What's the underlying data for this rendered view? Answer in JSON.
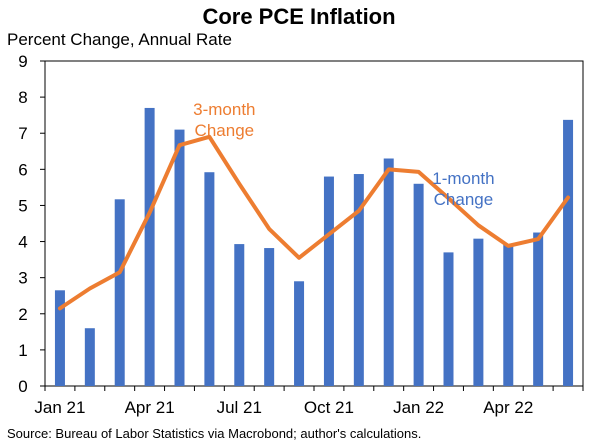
{
  "chart_data": {
    "type": "bar",
    "title": "Core PCE Inflation",
    "ylabel": "Percent Change, Annual Rate",
    "source": "Source: Bureau of Labor Statistics via Macrobond; author's calculations.",
    "ylim": [
      0,
      9
    ],
    "yticks": [
      "0",
      "1",
      "2",
      "3",
      "4",
      "5",
      "6",
      "7",
      "8",
      "9"
    ],
    "x": [
      "Jan 21",
      "Feb 21",
      "Mar 21",
      "Apr 21",
      "May 21",
      "Jun 21",
      "Jul 21",
      "Aug 21",
      "Sep 21",
      "Oct 21",
      "Nov 21",
      "Dec 21",
      "Jan 22",
      "Feb 22",
      "Mar 22",
      "Apr 22",
      "May 22",
      "Jun 22"
    ],
    "xtick_labels": [
      {
        "label": "Jan 21",
        "index": 0
      },
      {
        "label": "Apr 21",
        "index": 3
      },
      {
        "label": "Jul 21",
        "index": 6
      },
      {
        "label": "Oct 21",
        "index": 9
      },
      {
        "label": "Jan 22",
        "index": 12
      },
      {
        "label": "Apr 22",
        "index": 15
      }
    ],
    "series": [
      {
        "name": "1-month Change",
        "type": "bar",
        "color": "#4472C4",
        "values": [
          2.65,
          1.6,
          5.17,
          7.7,
          7.1,
          5.92,
          3.93,
          3.82,
          2.9,
          5.8,
          5.87,
          6.3,
          5.6,
          3.7,
          4.08,
          3.92,
          4.25,
          7.37
        ]
      },
      {
        "name": "3-month Change",
        "type": "line",
        "color": "#ED7D31",
        "values": [
          2.15,
          2.7,
          3.15,
          4.8,
          6.67,
          6.9,
          5.6,
          4.35,
          3.55,
          4.2,
          4.85,
          6.0,
          5.93,
          5.2,
          4.45,
          3.88,
          4.07,
          5.22
        ]
      }
    ],
    "annotations": [
      {
        "text_lines": [
          "3-month",
          "Change"
        ],
        "color": "#ED7D31",
        "near_index": 5.5,
        "near_value": 7.5
      },
      {
        "text_lines": [
          "1-month",
          "Change"
        ],
        "color": "#4472C4",
        "near_index": 13.5,
        "near_value": 5.6
      }
    ],
    "grid": false
  }
}
